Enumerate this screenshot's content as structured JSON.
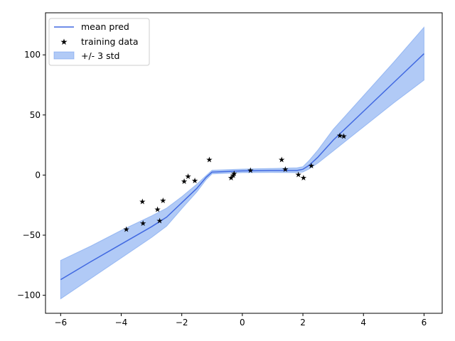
{
  "chart_data": {
    "type": "line",
    "title": "",
    "xlabel": "",
    "ylabel": "",
    "xlim": [
      -6.5,
      6.6
    ],
    "ylim": [
      -115,
      135
    ],
    "xticks": [
      -6,
      -4,
      -2,
      0,
      2,
      4,
      6
    ],
    "yticks": [
      -100,
      -50,
      0,
      50,
      100
    ],
    "xtick_labels": [
      "−6",
      "−4",
      "−2",
      "0",
      "2",
      "4",
      "6"
    ],
    "ytick_labels": [
      "−100",
      "−50",
      "0",
      "50",
      "100"
    ],
    "grid": false,
    "legend_position": "top-left",
    "colors": {
      "mean": "#4169e1",
      "band_fill": "#6495ed",
      "points": "#000000"
    },
    "series": [
      {
        "name": "mean pred",
        "kind": "line",
        "x": [
          -6,
          -5,
          -4,
          -3,
          -2.5,
          -2,
          -1.5,
          -1.2,
          -1.0,
          0,
          1.0,
          1.8,
          2.0,
          2.2,
          2.5,
          3,
          4,
          5,
          6
        ],
        "y": [
          -87,
          -72,
          -57.5,
          -43,
          -35,
          -23,
          -11,
          -2,
          2.5,
          3.5,
          3.8,
          3.8,
          4.8,
          8,
          15,
          29,
          53,
          77,
          101
        ]
      },
      {
        "name": "training data",
        "kind": "scatter",
        "x": [
          -3.83,
          -3.3,
          -3.28,
          -2.8,
          -2.73,
          -2.62,
          -1.92,
          -1.79,
          -1.57,
          -1.09,
          -0.37,
          -0.3,
          -0.27,
          0.27,
          1.3,
          1.42,
          1.85,
          2.02,
          2.28,
          3.22,
          3.35
        ],
        "y": [
          -45,
          -22,
          -40,
          -28.5,
          -38,
          -21,
          -5,
          -1,
          -4.5,
          13,
          -2,
          0,
          1.5,
          4,
          13,
          5,
          0.5,
          -2,
          8,
          33,
          32.5
        ]
      },
      {
        "name": "+/- 3 std",
        "kind": "band",
        "x": [
          -6,
          -5,
          -4,
          -3,
          -2.5,
          -2,
          -1.5,
          -1.2,
          -1.0,
          0,
          1.0,
          1.8,
          2.0,
          2.2,
          2.5,
          3,
          4,
          5,
          6
        ],
        "upper": [
          -71,
          -59,
          -46,
          -34,
          -27.5,
          -18,
          -7.5,
          -0.5,
          4,
          5,
          5.5,
          6,
          7,
          12,
          21,
          38,
          66,
          94,
          123
        ],
        "lower": [
          -103,
          -86,
          -69,
          -52,
          -42.5,
          -28,
          -14,
          -4,
          1,
          2,
          2.2,
          2,
          2.5,
          5,
          10,
          20,
          40,
          60,
          79
        ]
      }
    ]
  }
}
